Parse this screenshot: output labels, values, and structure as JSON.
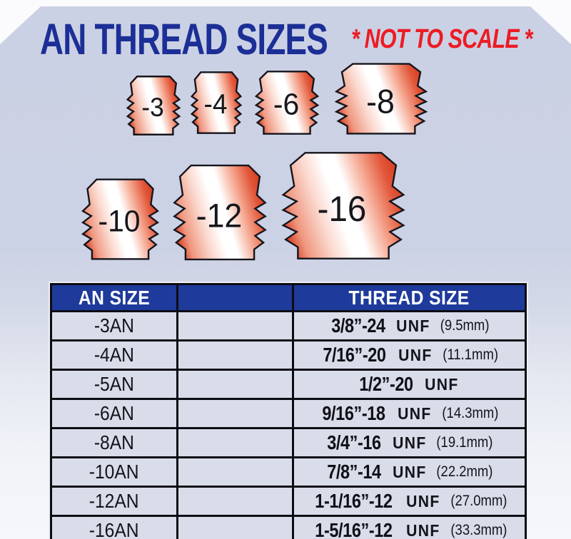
{
  "title": "AN THREAD SIZES",
  "subtitle": "* NOT TO SCALE *",
  "colors": {
    "title_blue": "#1c2f96",
    "warning_red": "#ec1c24",
    "header_blue": "#1e3a9b",
    "row_background": "#d9dde9",
    "panel_background": "#ccd2e5",
    "fitting_red": "#d94a2e",
    "fitting_highlight": "#ffffff"
  },
  "fittings": [
    {
      "label": "-3"
    },
    {
      "label": "-4"
    },
    {
      "label": "-6"
    },
    {
      "label": "-8"
    },
    {
      "label": "-10"
    },
    {
      "label": "-12"
    },
    {
      "label": "-16"
    }
  ],
  "table": {
    "headers": [
      "AN SIZE",
      "",
      "THREAD SIZE"
    ],
    "rows": [
      {
        "an": "-3AN",
        "thread": "3/8”-24",
        "unf": "UNF",
        "metric": "(9.5mm)"
      },
      {
        "an": "-4AN",
        "thread": "7/16”-20",
        "unf": "UNF",
        "metric": "(11.1mm)"
      },
      {
        "an": "-5AN",
        "thread": "1/2”-20",
        "unf": "UNF",
        "metric": ""
      },
      {
        "an": "-6AN",
        "thread": "9/16”-18",
        "unf": "UNF",
        "metric": "(14.3mm)"
      },
      {
        "an": "-8AN",
        "thread": "3/4”-16",
        "unf": "UNF",
        "metric": "(19.1mm)"
      },
      {
        "an": "-10AN",
        "thread": "7/8”-14",
        "unf": "UNF",
        "metric": "(22.2mm)"
      },
      {
        "an": "-12AN",
        "thread": "1-1/16”-12",
        "unf": "UNF",
        "metric": "(27.0mm)"
      },
      {
        "an": "-16AN",
        "thread": "1-5/16”-12",
        "unf": "UNF",
        "metric": "(33.3mm)"
      }
    ]
  }
}
